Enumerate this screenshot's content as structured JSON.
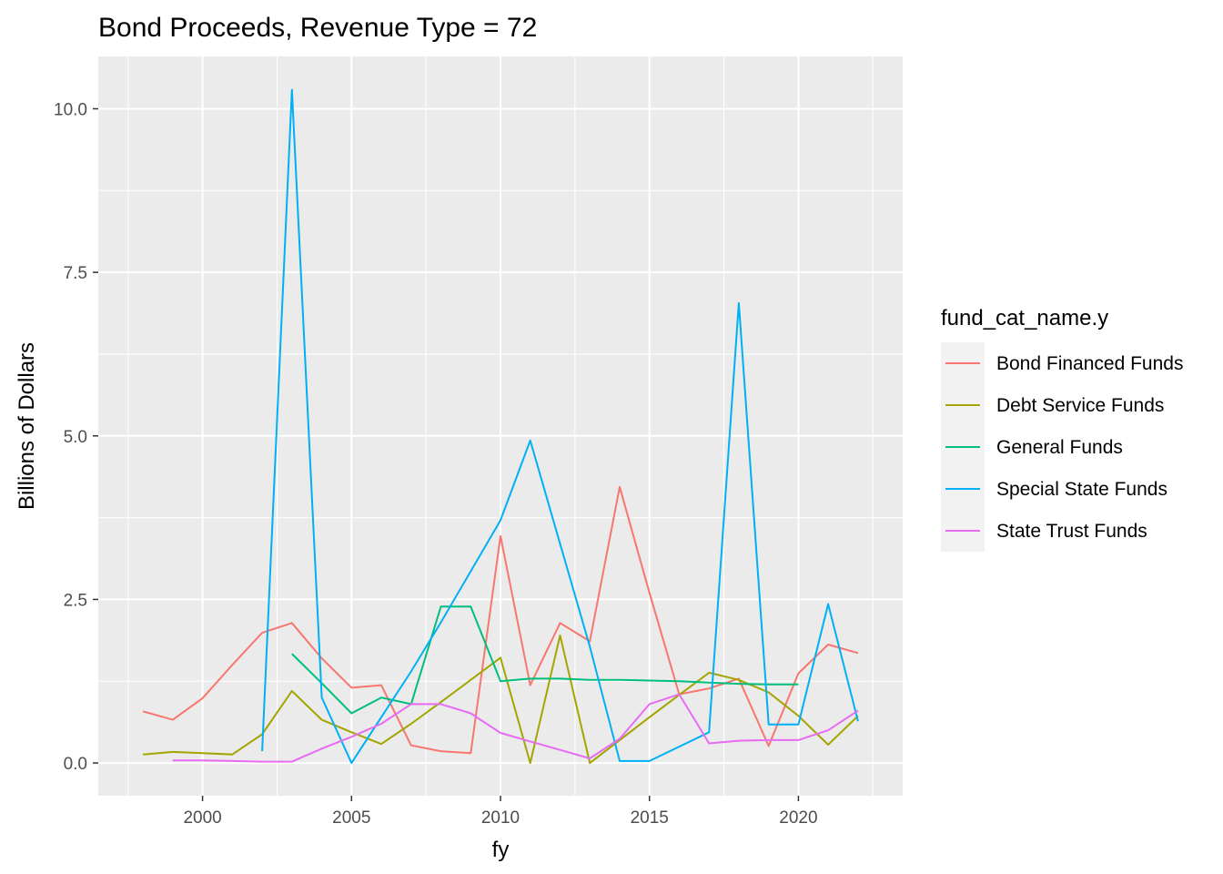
{
  "chart_data": {
    "type": "line",
    "title": "Bond Proceeds, Revenue Type = 72",
    "xlabel": "fy",
    "ylabel": "Billions of Dollars",
    "xlim": [
      1996.5,
      2023.5
    ],
    "ylim": [
      -0.5,
      10.8
    ],
    "x_ticks": [
      2000,
      2005,
      2010,
      2015,
      2020
    ],
    "y_ticks": [
      0.0,
      2.5,
      5.0,
      7.5,
      10.0
    ],
    "x_tick_labels": [
      "2000",
      "2005",
      "2010",
      "2015",
      "2020"
    ],
    "y_tick_labels": [
      "0.0",
      "2.5",
      "5.0",
      "7.5",
      "10.0"
    ],
    "grid": true,
    "panel_background": "#ebebeb",
    "legend": {
      "title": "fund_cat_name.y",
      "placement": "right"
    },
    "series": [
      {
        "name": "Bond Financed Funds",
        "color": "#f8766d",
        "x": [
          1998,
          1999,
          2000,
          2001,
          2002,
          2003,
          2004,
          2005,
          2006,
          2007,
          2008,
          2009,
          2010,
          2011,
          2012,
          2013,
          2014,
          2015,
          2016,
          2017,
          2018,
          2019,
          2020,
          2021,
          2022
        ],
        "y": [
          0.79,
          0.66,
          0.99,
          1.5,
          1.99,
          2.14,
          1.6,
          1.15,
          1.19,
          0.27,
          0.18,
          0.15,
          3.47,
          1.19,
          2.14,
          1.86,
          4.22,
          2.6,
          1.05,
          1.14,
          1.29,
          0.26,
          1.37,
          1.81,
          1.68
        ]
      },
      {
        "name": "Debt Service Funds",
        "color": "#a3a500",
        "x": [
          1998,
          1999,
          2000,
          2001,
          2002,
          2003,
          2004,
          2005,
          2006,
          2007,
          2008,
          2009,
          2010,
          2011,
          2012,
          2013,
          2014,
          2015,
          2016,
          2017,
          2018,
          2019,
          2020,
          2021,
          2022
        ],
        "y": [
          0.13,
          0.17,
          0.15,
          0.13,
          0.44,
          1.1,
          0.66,
          0.47,
          0.29,
          0.6,
          0.93,
          1.27,
          1.61,
          0.0,
          1.95,
          0.0,
          0.35,
          0.7,
          1.04,
          1.38,
          1.27,
          1.08,
          0.72,
          0.28,
          0.72
        ]
      },
      {
        "name": "General Funds",
        "color": "#00bf7d",
        "x": [
          2003,
          2004,
          2005,
          2006,
          2007,
          2008,
          2009,
          2010,
          2011,
          2012,
          2013,
          2014,
          2015,
          2016,
          2017,
          2018,
          2019,
          2020
        ],
        "y": [
          1.67,
          1.22,
          0.76,
          1.0,
          0.9,
          2.39,
          2.39,
          1.25,
          1.29,
          1.29,
          1.27,
          1.27,
          1.26,
          1.25,
          1.23,
          1.21,
          1.2,
          1.2
        ]
      },
      {
        "name": "Special State Funds",
        "color": "#00b0f6",
        "x": [
          2002,
          2003,
          2004,
          2005,
          2006,
          2007,
          2008,
          2009,
          2010,
          2011,
          2012,
          2013,
          2014,
          2015,
          2016,
          2017,
          2018,
          2019,
          2020,
          2021,
          2022
        ],
        "y": [
          0.18,
          10.29,
          1.0,
          0.0,
          0.7,
          1.4,
          2.15,
          2.93,
          3.71,
          4.93,
          3.35,
          1.78,
          0.03,
          0.03,
          0.25,
          0.47,
          7.03,
          0.59,
          0.59,
          2.43,
          0.64
        ]
      },
      {
        "name": "State Trust Funds",
        "color": "#e76bf3",
        "x": [
          1999,
          2000,
          2001,
          2002,
          2003,
          2004,
          2005,
          2006,
          2007,
          2008,
          2009,
          2010,
          2011,
          2012,
          2013,
          2014,
          2015,
          2016,
          2017,
          2018,
          2019,
          2020,
          2021,
          2022
        ],
        "y": [
          0.04,
          0.04,
          0.03,
          0.02,
          0.02,
          0.22,
          0.4,
          0.6,
          0.9,
          0.9,
          0.76,
          0.46,
          0.33,
          0.2,
          0.07,
          0.37,
          0.9,
          1.05,
          0.3,
          0.34,
          0.35,
          0.35,
          0.5,
          0.8
        ]
      }
    ]
  }
}
